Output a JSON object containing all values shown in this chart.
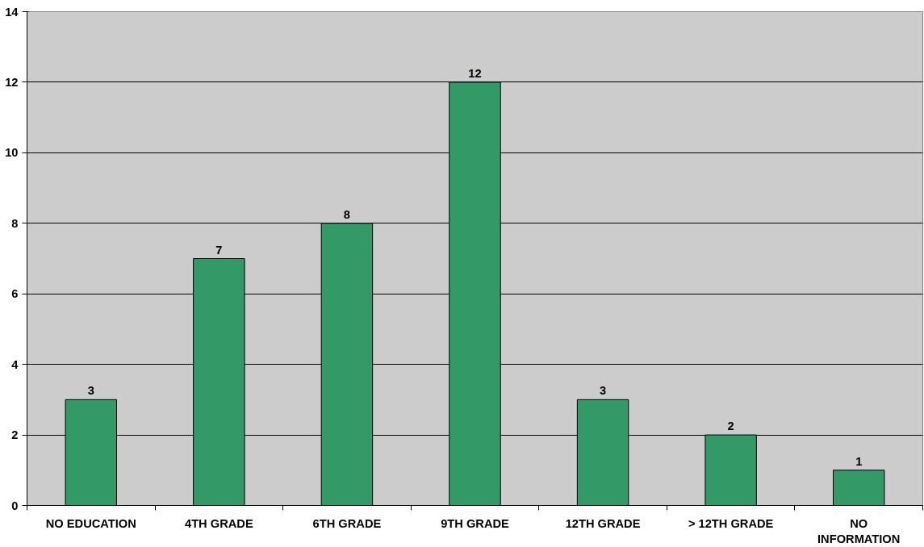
{
  "chart_data": {
    "type": "bar",
    "categories": [
      "NO EDUCATION",
      "4TH GRADE",
      "6TH GRADE",
      "9TH GRADE",
      "12TH GRADE",
      "> 12TH GRADE",
      "NO INFORMATION"
    ],
    "values": [
      3,
      7,
      8,
      12,
      3,
      2,
      1
    ],
    "color": "#339966",
    "ylim": [
      0,
      14
    ],
    "yticks": [
      0,
      2,
      4,
      6,
      8,
      10,
      12,
      14
    ],
    "grid": "y",
    "data_labels": true
  }
}
